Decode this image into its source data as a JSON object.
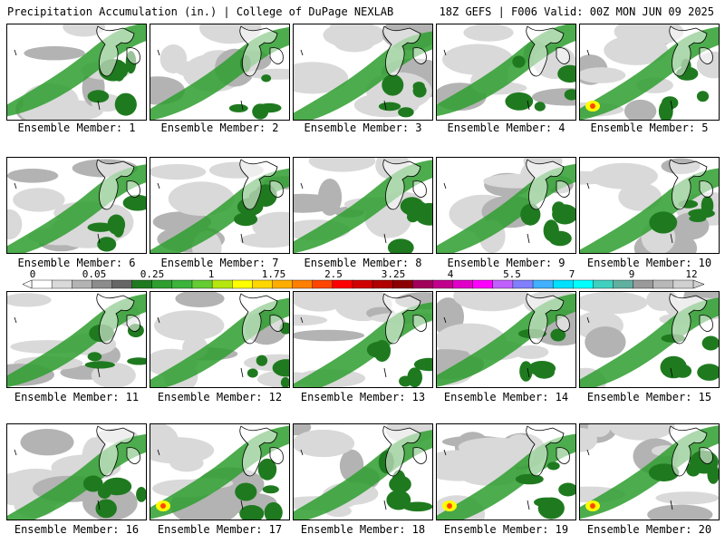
{
  "header": {
    "left_title": "Precipitation Accumulation (in.) | College of DuPage NEXLAB",
    "right_title": "18Z GEFS | F006 Valid: 00Z MON JUN 09 2025"
  },
  "colorbar": {
    "labels": [
      "0",
      "0.05",
      "0.25",
      "1",
      "1.75",
      "2.5",
      "3.25",
      "4",
      "5.5",
      "7",
      "9",
      "12"
    ],
    "colors": [
      "#ffffff",
      "#d9d9d9",
      "#b3b3b3",
      "#8c8c8c",
      "#666666",
      "#1f7a1f",
      "#2e9e2e",
      "#3cb43c",
      "#66cc33",
      "#b6e60f",
      "#ffff00",
      "#ffd700",
      "#ffae00",
      "#ff8000",
      "#ff4500",
      "#ff0000",
      "#d10000",
      "#b00000",
      "#8b0000",
      "#a0005a",
      "#c0008c",
      "#e000c8",
      "#ff00ff",
      "#c060ff",
      "#8080ff",
      "#40b0ff",
      "#00e0ff",
      "#00ffff",
      "#40d0c0",
      "#60b0a0",
      "#9a9a9a",
      "#b8b8b8",
      "#d0d0d0"
    ]
  },
  "members": [
    {
      "label": "Ensemble Member: 1"
    },
    {
      "label": "Ensemble Member: 2"
    },
    {
      "label": "Ensemble Member: 3"
    },
    {
      "label": "Ensemble Member: 4"
    },
    {
      "label": "Ensemble Member: 5"
    },
    {
      "label": "Ensemble Member: 6"
    },
    {
      "label": "Ensemble Member: 7"
    },
    {
      "label": "Ensemble Member: 8"
    },
    {
      "label": "Ensemble Member: 9"
    },
    {
      "label": "Ensemble Member: 10"
    },
    {
      "label": "Ensemble Member: 11"
    },
    {
      "label": "Ensemble Member: 12"
    },
    {
      "label": "Ensemble Member: 13"
    },
    {
      "label": "Ensemble Member: 14"
    },
    {
      "label": "Ensemble Member: 15"
    },
    {
      "label": "Ensemble Member: 16"
    },
    {
      "label": "Ensemble Member: 17"
    },
    {
      "label": "Ensemble Member: 18"
    },
    {
      "label": "Ensemble Member: 19"
    },
    {
      "label": "Ensemble Member: 20"
    }
  ]
}
